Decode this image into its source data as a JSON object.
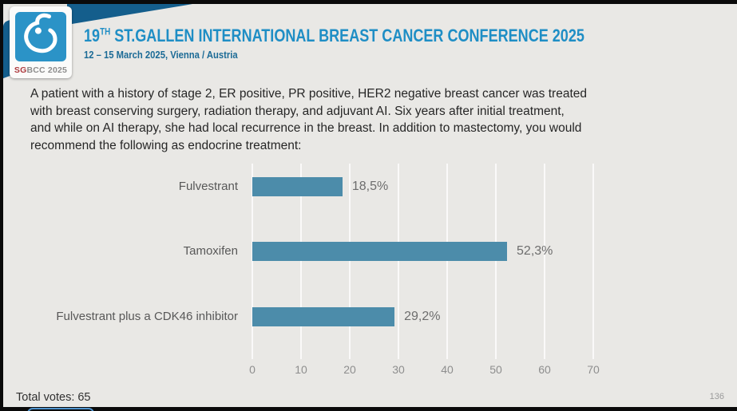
{
  "header": {
    "title_number": "19",
    "title_sup": "TH",
    "title_rest": " ST.GALLEN INTERNATIONAL BREAST CANCER CONFERENCE 2025",
    "subtitle": "12 – 15 March 2025, Vienna / Austria",
    "logo": {
      "sg": "SG",
      "bcc": "BCC 2025"
    },
    "colors": {
      "title_blue": "#1f8ec5",
      "subtitle_blue": "#1c6b96",
      "ribbon_blue": "#145e8c",
      "logo_square_blue": "#2b93c7",
      "logo_sg_red": "#ac3a3e"
    }
  },
  "question": {
    "lines": [
      "A patient with a history of stage 2, ER positive, PR positive, HER2 negative breast cancer was treated",
      "with breast conserving surgery, radiation therapy, and adjuvant AI.  Six years after initial treatment,",
      "and while on AI therapy, she had local recurrence in the breast.  In addition to mastectomy, you would",
      "recommend the following as endocrine treatment:"
    ]
  },
  "chart_data": {
    "type": "bar",
    "orientation": "horizontal",
    "title": "",
    "categories": [
      "Fulvestrant",
      "Tamoxifen",
      "Fulvestrant plus a CDK46 inhibitor"
    ],
    "values": [
      18.5,
      52.3,
      29.2
    ],
    "value_labels": [
      "18,5%",
      "52,3%",
      "29,2%"
    ],
    "xlim": [
      0,
      70
    ],
    "xticks": [
      0,
      10,
      20,
      30,
      40,
      50,
      60,
      70
    ],
    "grid": true,
    "legend": "none",
    "bar_color": "#4c8caa",
    "slide_bg": "#e9e8e5"
  },
  "footer": {
    "total_votes": "Total votes: 65",
    "page_number": "136"
  }
}
